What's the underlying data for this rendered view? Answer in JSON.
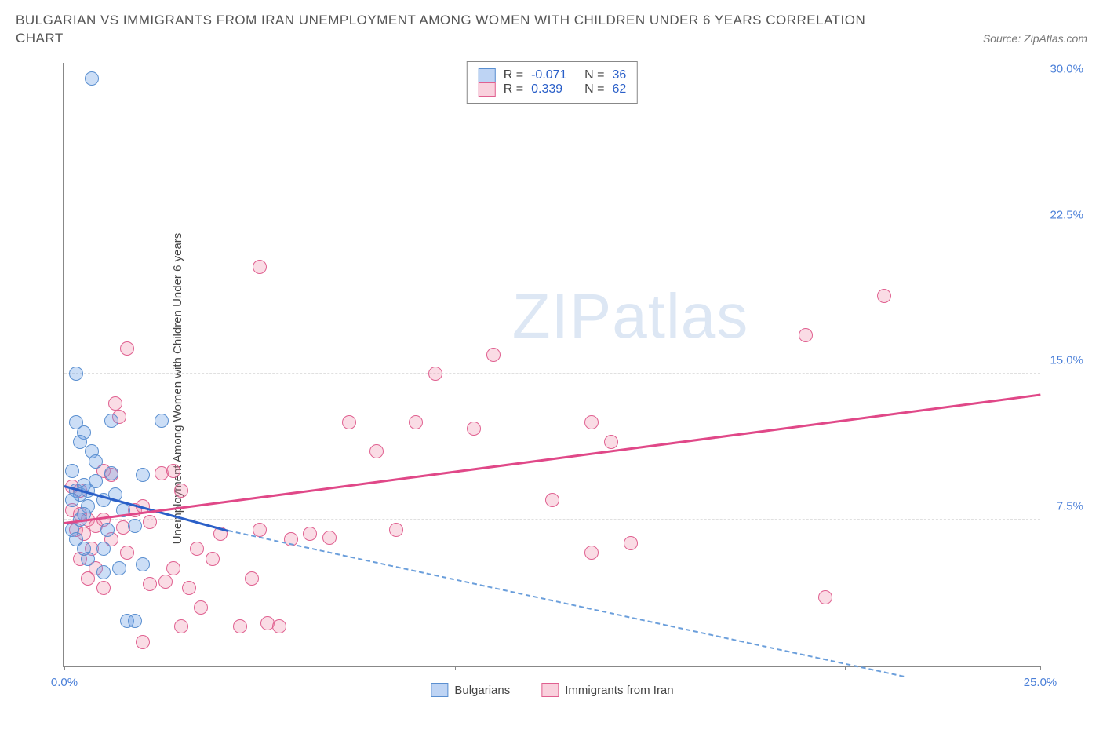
{
  "header": {
    "title_line1": "BULGARIAN VS IMMIGRANTS FROM IRAN UNEMPLOYMENT AMONG WOMEN WITH CHILDREN UNDER 6 YEARS CORRELATION",
    "title_line2": "CHART",
    "source_prefix": "Source: ",
    "source_name": "ZipAtlas.com"
  },
  "watermark": {
    "part1": "ZIP",
    "part2": "atlas"
  },
  "chart": {
    "type": "scatter",
    "y_axis_label": "Unemployment Among Women with Children Under 6 years",
    "xlim": [
      0,
      25
    ],
    "ylim": [
      0,
      31
    ],
    "x_ticks": [
      0,
      5,
      10,
      15,
      20,
      25
    ],
    "x_tick_labels": {
      "0": "0.0%",
      "25": "25.0%"
    },
    "y_ticks": [
      7.5,
      15.0,
      22.5,
      30.0
    ],
    "y_tick_labels": [
      "7.5%",
      "15.0%",
      "22.5%",
      "30.0%"
    ],
    "grid_color": "#e0e0e0",
    "background_color": "#ffffff",
    "legend_top": {
      "series1": {
        "r_label": "R =",
        "r_value": "-0.071",
        "n_label": "N =",
        "n_value": "36"
      },
      "series2": {
        "r_label": "R =",
        "r_value": " 0.339",
        "n_label": "N =",
        "n_value": "62"
      }
    },
    "legend_bottom": {
      "series1_label": "Bulgarians",
      "series2_label": "Immigrants from Iran"
    },
    "series": {
      "bulgarians": {
        "color": "#5a8fd0",
        "fill": "rgba(110,160,230,0.35)",
        "points": [
          [
            0.3,
            9.0
          ],
          [
            0.4,
            8.8
          ],
          [
            0.5,
            9.3
          ],
          [
            0.6,
            8.2
          ],
          [
            0.2,
            8.5
          ],
          [
            0.5,
            7.8
          ],
          [
            0.8,
            9.5
          ],
          [
            0.3,
            12.5
          ],
          [
            0.5,
            12.0
          ],
          [
            0.4,
            11.5
          ],
          [
            1.2,
            12.6
          ],
          [
            2.5,
            12.6
          ],
          [
            0.7,
            11.0
          ],
          [
            0.3,
            15.0
          ],
          [
            1.2,
            9.9
          ],
          [
            2.0,
            9.8
          ],
          [
            1.5,
            8.0
          ],
          [
            1.8,
            7.2
          ],
          [
            1.0,
            6.0
          ],
          [
            1.4,
            5.0
          ],
          [
            1.0,
            4.8
          ],
          [
            0.6,
            5.5
          ],
          [
            1.6,
            2.3
          ],
          [
            1.8,
            2.3
          ],
          [
            2.0,
            5.2
          ],
          [
            0.2,
            7.0
          ],
          [
            0.4,
            7.5
          ],
          [
            0.6,
            9.0
          ],
          [
            0.8,
            10.5
          ],
          [
            0.2,
            10.0
          ],
          [
            1.0,
            8.5
          ],
          [
            0.7,
            30.2
          ],
          [
            0.3,
            6.5
          ],
          [
            0.5,
            6.0
          ],
          [
            1.1,
            7.0
          ],
          [
            1.3,
            8.8
          ]
        ],
        "trendline": {
          "x1": 0,
          "y1": 9.3,
          "x2": 4.2,
          "y2": 7.0,
          "extrap_x2": 21.5,
          "extrap_y2": -0.5
        }
      },
      "iran": {
        "color": "#e06090",
        "fill": "rgba(240,140,170,0.30)",
        "points": [
          [
            0.2,
            8.0
          ],
          [
            0.4,
            7.8
          ],
          [
            0.6,
            7.5
          ],
          [
            0.3,
            7.0
          ],
          [
            0.5,
            6.8
          ],
          [
            0.8,
            7.2
          ],
          [
            0.7,
            6.0
          ],
          [
            1.0,
            7.5
          ],
          [
            1.2,
            6.5
          ],
          [
            1.5,
            7.1
          ],
          [
            1.8,
            8.0
          ],
          [
            2.0,
            8.2
          ],
          [
            2.2,
            7.4
          ],
          [
            0.4,
            5.5
          ],
          [
            1.4,
            12.8
          ],
          [
            1.0,
            10.0
          ],
          [
            1.2,
            9.8
          ],
          [
            2.5,
            9.9
          ],
          [
            2.8,
            10.0
          ],
          [
            3.0,
            9.0
          ],
          [
            2.2,
            4.2
          ],
          [
            2.6,
            4.3
          ],
          [
            3.2,
            4.0
          ],
          [
            3.4,
            6.0
          ],
          [
            3.8,
            5.5
          ],
          [
            4.0,
            6.8
          ],
          [
            4.5,
            2.0
          ],
          [
            5.0,
            7.0
          ],
          [
            5.2,
            2.2
          ],
          [
            5.5,
            2.0
          ],
          [
            5.8,
            6.5
          ],
          [
            6.3,
            6.8
          ],
          [
            6.8,
            6.6
          ],
          [
            7.3,
            12.5
          ],
          [
            8.0,
            11.0
          ],
          [
            8.5,
            7.0
          ],
          [
            9.0,
            12.5
          ],
          [
            9.5,
            15.0
          ],
          [
            10.5,
            12.2
          ],
          [
            11.0,
            16.0
          ],
          [
            12.5,
            8.5
          ],
          [
            13.5,
            12.5
          ],
          [
            13.5,
            5.8
          ],
          [
            14.5,
            6.3
          ],
          [
            14.0,
            11.5
          ],
          [
            19.0,
            17.0
          ],
          [
            19.5,
            3.5
          ],
          [
            21.0,
            19.0
          ],
          [
            0.6,
            4.5
          ],
          [
            1.3,
            13.5
          ],
          [
            1.6,
            16.3
          ],
          [
            5.0,
            20.5
          ],
          [
            3.5,
            3.0
          ],
          [
            4.8,
            4.5
          ],
          [
            3.0,
            2.0
          ],
          [
            2.0,
            1.2
          ],
          [
            0.2,
            9.2
          ],
          [
            0.4,
            9.0
          ],
          [
            0.8,
            5.0
          ],
          [
            1.0,
            4.0
          ],
          [
            1.6,
            5.8
          ],
          [
            2.8,
            5.0
          ]
        ],
        "trendline": {
          "x1": 0,
          "y1": 7.4,
          "x2": 25,
          "y2": 14.0
        }
      }
    }
  }
}
